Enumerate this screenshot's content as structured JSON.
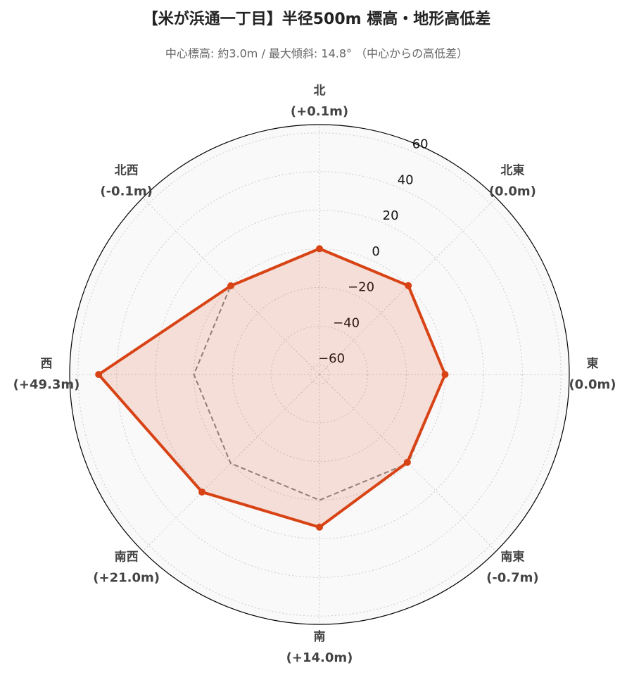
{
  "chart_data": {
    "type": "radar",
    "title": "【米が浜通一丁目】半径500m 標高・地形高低差",
    "subtitle": "中心標高: 約3.0m / 最大傾斜: 14.8° （中心からの高低差）",
    "categories": [
      "北",
      "北東",
      "東",
      "南東",
      "南",
      "南西",
      "西",
      "北西"
    ],
    "values": [
      0.1,
      0.0,
      0.0,
      -0.7,
      14.0,
      21.0,
      49.3,
      -0.1
    ],
    "value_labels": [
      "(+0.1m)",
      "(0.0m)",
      "(0.0m)",
      "(-0.7m)",
      "(+14.0m)",
      "(+21.0m)",
      "(+49.3m)",
      "(-0.1m)"
    ],
    "color": "#d84315",
    "reference": 0,
    "ylim": [
      -65,
      64.3
    ],
    "yticks": [
      {
        "value": -60,
        "label": "−60"
      },
      {
        "value": -40,
        "label": "−40"
      },
      {
        "value": -20,
        "label": "−20"
      },
      0,
      20,
      40,
      60
    ],
    "grid": true
  }
}
